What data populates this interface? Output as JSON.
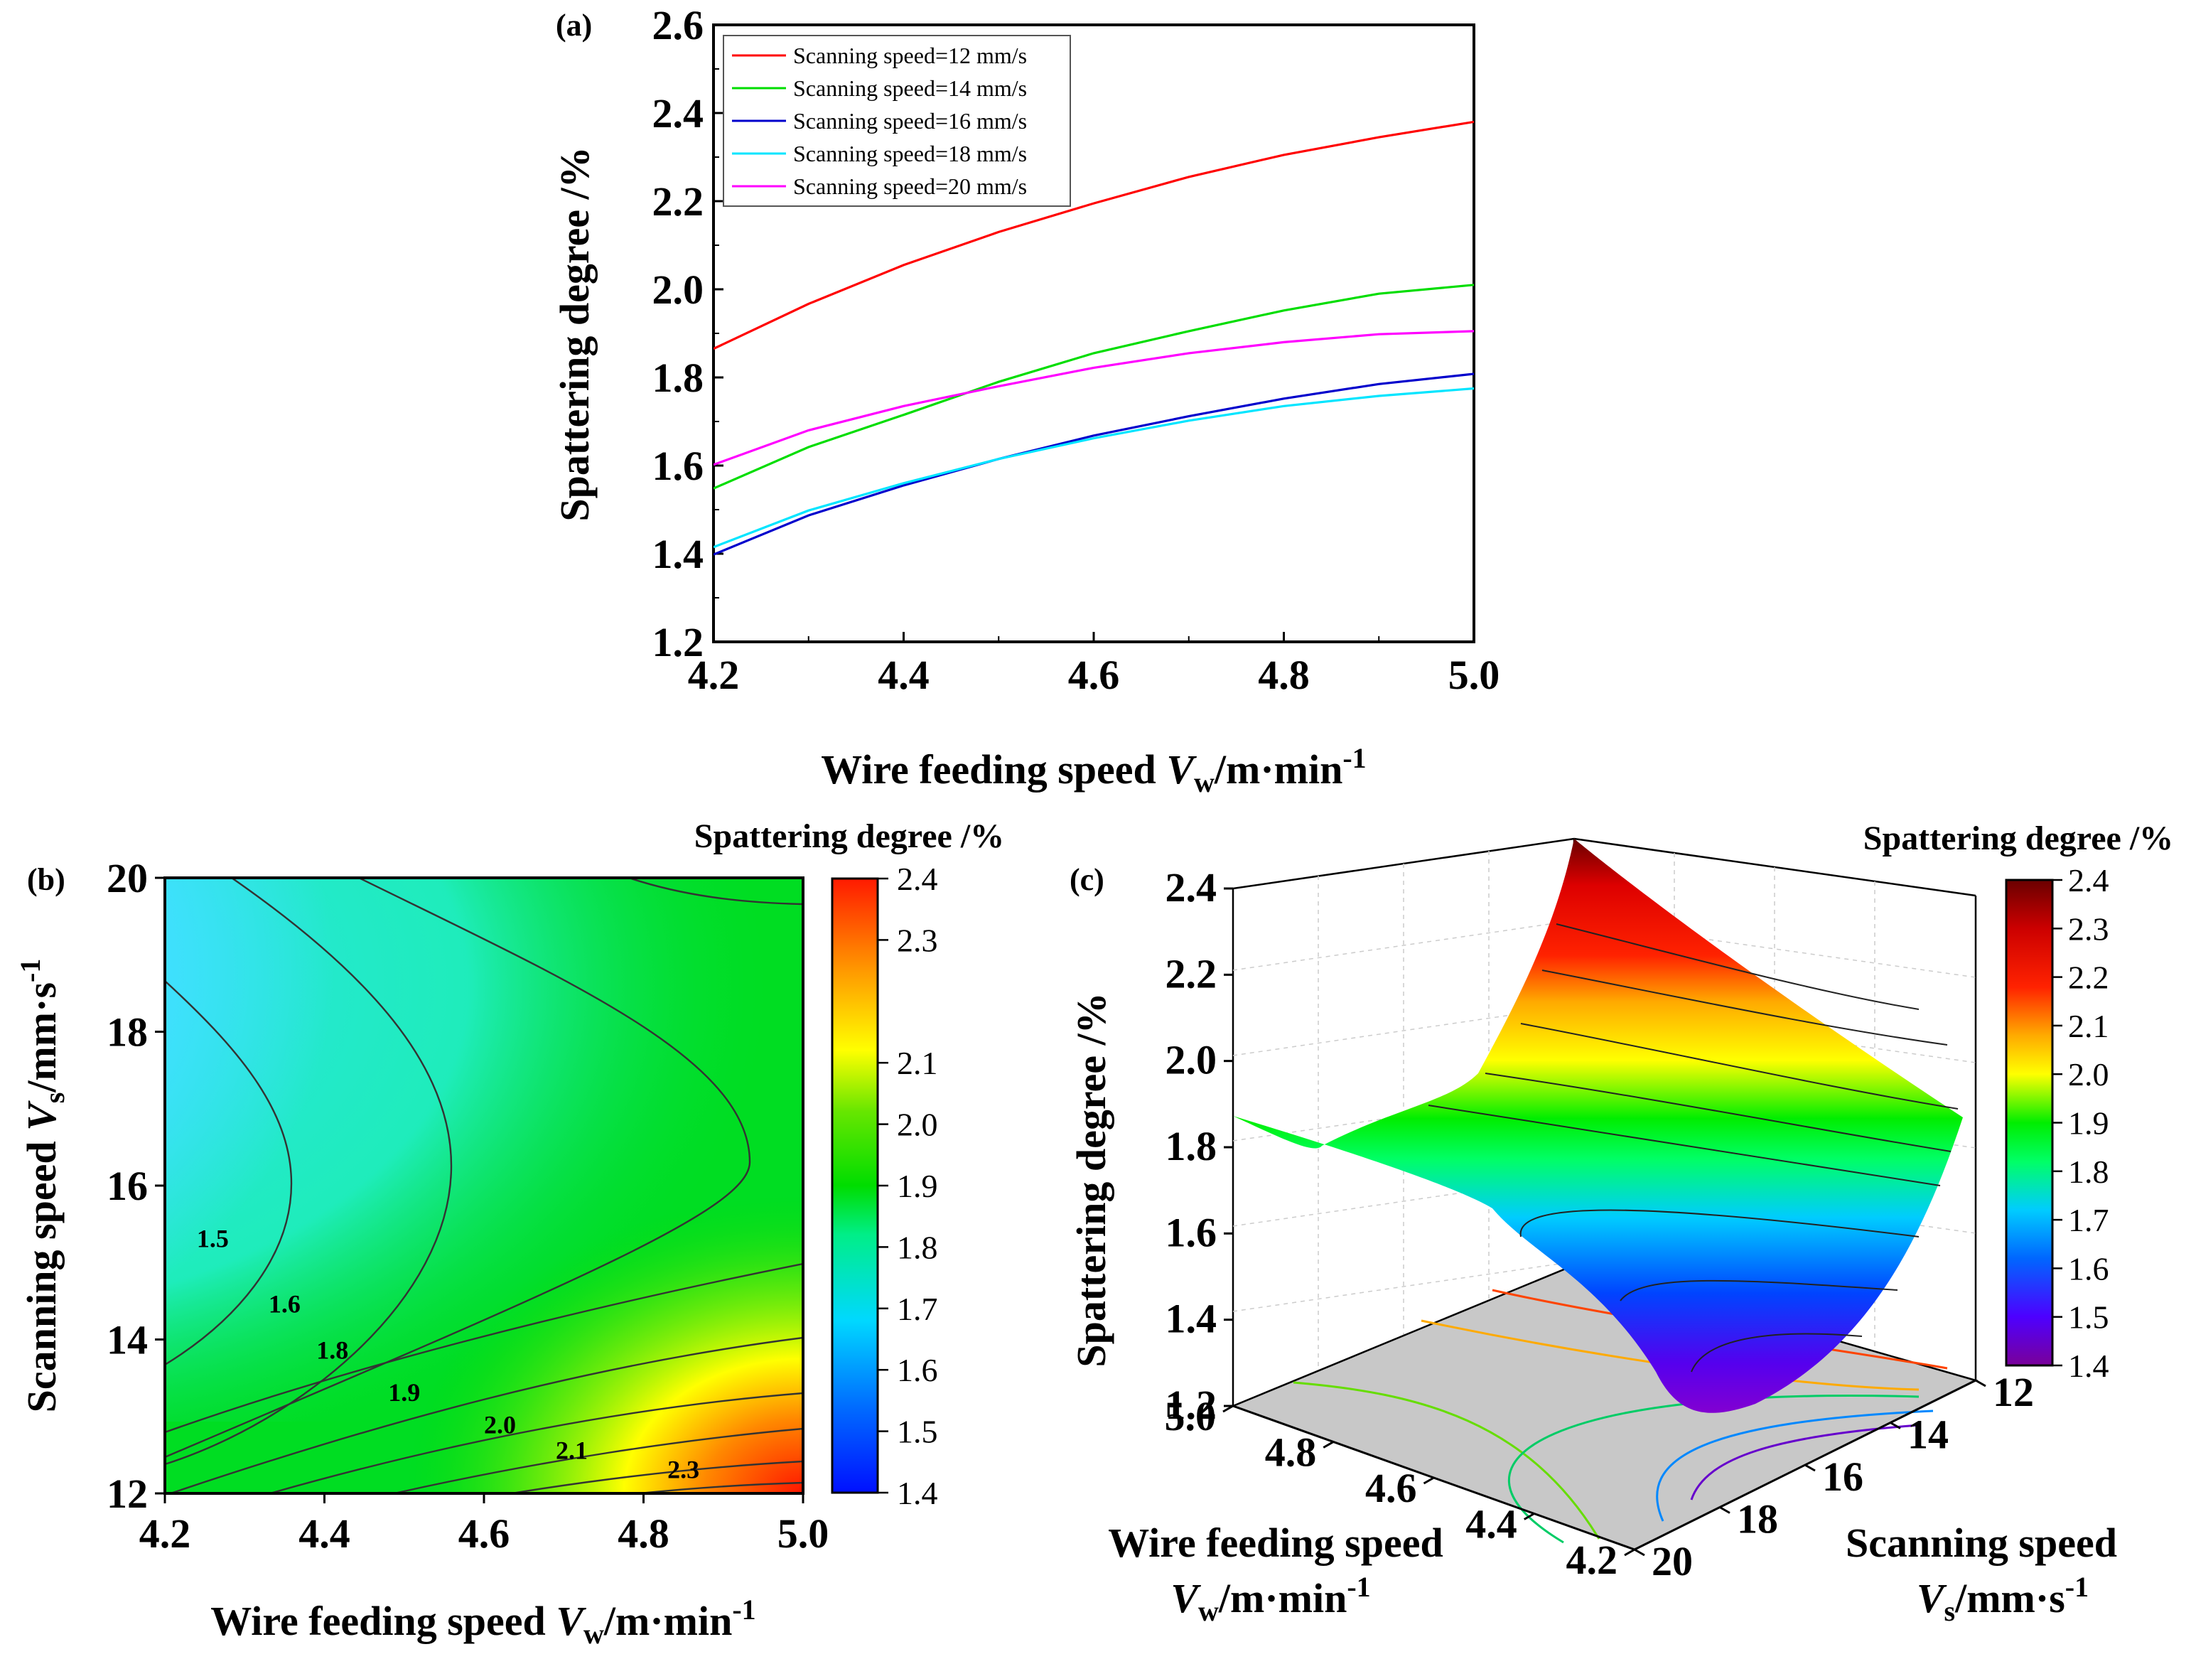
{
  "chart_data": [
    {
      "panel": "(a)",
      "type": "line",
      "x": [
        4.2,
        4.3,
        4.4,
        4.5,
        4.6,
        4.7,
        4.8,
        4.9,
        5.0
      ],
      "series": [
        {
          "name": "Scanning speed=12 mm/s",
          "color": "#ff0000",
          "values": [
            1.865,
            1.967,
            2.055,
            2.13,
            2.195,
            2.255,
            2.305,
            2.345,
            2.38
          ]
        },
        {
          "name": "Scanning speed=14 mm/s",
          "color": "#00dd00",
          "values": [
            1.548,
            1.642,
            1.715,
            1.79,
            1.855,
            1.905,
            1.952,
            1.99,
            2.01
          ]
        },
        {
          "name": "Scanning speed=16 mm/s",
          "color": "#0000cc",
          "values": [
            1.398,
            1.487,
            1.555,
            1.615,
            1.668,
            1.712,
            1.752,
            1.785,
            1.808
          ]
        },
        {
          "name": "Scanning speed=18 mm/s",
          "color": "#00e5ff",
          "values": [
            1.415,
            1.498,
            1.56,
            1.615,
            1.662,
            1.702,
            1.735,
            1.758,
            1.775
          ]
        },
        {
          "name": "Scanning speed=20 mm/s",
          "color": "#ff00ff",
          "values": [
            1.602,
            1.68,
            1.735,
            1.78,
            1.822,
            1.855,
            1.88,
            1.898,
            1.905
          ]
        }
      ],
      "xlabel": {
        "main": "Wire feeding speed ",
        "var": "V",
        "sub": "w",
        "unit": "/m·min",
        "exp": "-1"
      },
      "ylabel": "Spattering degree  /%",
      "xlim": [
        4.2,
        5.0
      ],
      "ylim": [
        1.2,
        2.6
      ],
      "xticks": [
        "4.2",
        "4.4",
        "4.6",
        "4.8",
        "5.0"
      ],
      "yticks": [
        "1.2",
        "1.4",
        "1.6",
        "1.8",
        "2.0",
        "2.2",
        "2.4",
        "2.6"
      ],
      "legend": "top-left"
    },
    {
      "panel": "(b)",
      "type": "heatmap",
      "xlim": [
        4.2,
        5.0
      ],
      "ylim": [
        12,
        20
      ],
      "xticks": [
        "4.2",
        "4.4",
        "4.6",
        "4.8",
        "5.0"
      ],
      "yticks": [
        "12",
        "14",
        "16",
        "18",
        "20"
      ],
      "xlabel": {
        "main": "Wire feeding speed ",
        "var": "V",
        "sub": "w",
        "unit": "/m·min",
        "exp": "-1"
      },
      "ylabel": {
        "main": "Scanning speed ",
        "var": "V",
        "sub": "s",
        "unit": "/mm·s",
        "exp": "-1"
      },
      "contour_levels": [
        "1.5",
        "1.6",
        "1.8",
        "1.9",
        "2.0",
        "2.1",
        "2.3"
      ],
      "colorbar": {
        "title": "Spattering degree /%",
        "min": 1.4,
        "max": 2.4,
        "ticks": [
          "1.4",
          "1.5",
          "1.6",
          "1.7",
          "1.8",
          "1.9",
          "2.0",
          "2.1",
          "2.3",
          "2.4"
        ]
      }
    },
    {
      "panel": "(c)",
      "type": "surface",
      "z_ticks": [
        "1.2",
        "1.4",
        "1.6",
        "1.8",
        "2.0",
        "2.2",
        "2.4"
      ],
      "zlabel": "Spattering degree  /%",
      "wire_ticks": [
        "5.0",
        "4.8",
        "4.6",
        "4.4",
        "4.2"
      ],
      "scan_ticks": [
        "12",
        "14",
        "16",
        "18",
        "20"
      ],
      "wire_label": {
        "line1": "Wire feeding speed",
        "var": "V",
        "sub": "w",
        "unit": "/m·min",
        "exp": "-1"
      },
      "scan_label": {
        "line1": "Scanning speed",
        "var": "V",
        "sub": "s",
        "unit": "/mm·s",
        "exp": "-1"
      },
      "colorbar": {
        "title": "Spattering degree  /%",
        "min": 1.4,
        "max": 2.4,
        "ticks": [
          "1.4",
          "1.5",
          "1.6",
          "1.7",
          "1.8",
          "1.9",
          "2.0",
          "2.1",
          "2.2",
          "2.3",
          "2.4"
        ]
      }
    }
  ]
}
